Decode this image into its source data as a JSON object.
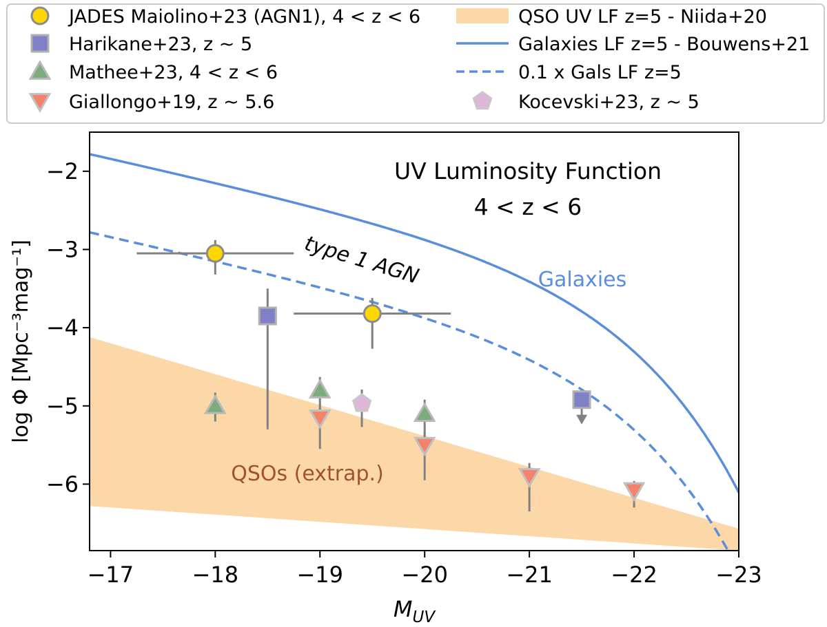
{
  "chart_data": {
    "type": "scatter",
    "title": "UV Luminosity Function",
    "subtitle": "4 < z < 6",
    "xlabel": "M",
    "xlabel_sub": "UV",
    "ylabel": "log Φ  [Mpc⁻³mag⁻¹]",
    "xlim": [
      -16.8,
      -23.0
    ],
    "ylim": [
      -6.85,
      -1.5
    ],
    "grid": false,
    "legend_placement": "top, outside (two columns)",
    "x_ticks": [
      -17,
      -18,
      -19,
      -20,
      -21,
      -22,
      -23
    ],
    "x_tick_labels": [
      "−17",
      "−18",
      "−19",
      "−20",
      "−21",
      "−22",
      "−23"
    ],
    "y_ticks": [
      -2,
      -3,
      -4,
      -5,
      -6
    ],
    "y_tick_labels": [
      "−2",
      "−3",
      "−4",
      "−5",
      "−6"
    ],
    "colors": {
      "jades": "#ffd700",
      "harikane": "#8080c8",
      "mathee": "#7cab7c",
      "giallongo": "#f5826a",
      "kocevski": "#ddb6d8",
      "qso_band": "#fcd8a8",
      "galaxies_line": "#5b8ddd",
      "qso_label": "#a0522d",
      "errorbar": "#808080"
    },
    "legend": [
      "JADES Maiolino+23 (AGN1), 4 < z < 6",
      "Harikane+23, z ~ 5",
      "Mathee+23, 4 < z < 6",
      "Giallongo+19, z ~ 5.6",
      "QSO UV LF z=5 - Niida+20",
      "Galaxies LF z=5 - Bouwens+21",
      "0.1 x Gals LF z=5",
      "Kocevski+23, z ~ 5"
    ],
    "annotations": {
      "agn": "type 1 AGN",
      "galaxies": "Galaxies",
      "qso": "QSOs (extrap.)"
    },
    "series": [
      {
        "name": "JADES Maiolino+23 (AGN1), 4 < z < 6",
        "marker": "circle",
        "points": [
          {
            "x": -18.0,
            "y": -3.05,
            "xerr": [
              0.75,
              0.75
            ],
            "yerr": [
              0.27,
              0.17
            ]
          },
          {
            "x": -19.5,
            "y": -3.82,
            "xerr": [
              0.75,
              0.75
            ],
            "yerr": [
              0.45,
              0.2
            ]
          }
        ]
      },
      {
        "name": "Harikane+23, z ~ 5",
        "marker": "square",
        "points": [
          {
            "x": -18.5,
            "y": -3.85,
            "yerr": [
              1.45,
              0.35
            ]
          },
          {
            "x": -21.5,
            "y": -4.92,
            "upper_limit": true
          }
        ]
      },
      {
        "name": "Mathee+23, 4 < z < 6",
        "marker": "triangle-up",
        "points": [
          {
            "x": -18.0,
            "y": -5.0,
            "yerr": [
              0.2,
              0.17
            ]
          },
          {
            "x": -19.0,
            "y": -4.8,
            "yerr": [
              0.4,
              0.17
            ]
          },
          {
            "x": -20.0,
            "y": -5.1,
            "yerr": [
              0.38,
              0.18
            ]
          }
        ]
      },
      {
        "name": "Giallongo+19, z ~ 5.6",
        "marker": "triangle-down",
        "points": [
          {
            "x": -19.0,
            "y": -5.15,
            "yerr": [
              0.4,
              0.18
            ]
          },
          {
            "x": -20.0,
            "y": -5.5,
            "yerr": [
              0.45,
              0.18
            ]
          },
          {
            "x": -21.0,
            "y": -5.9,
            "yerr": [
              0.45,
              0.17
            ]
          },
          {
            "x": -22.0,
            "y": -6.08,
            "yerr": [
              0.22,
              0.12
            ]
          }
        ]
      },
      {
        "name": "Kocevski+23, z ~ 5",
        "marker": "pentagon",
        "points": [
          {
            "x": -19.4,
            "y": -4.97,
            "yerr": [
              0.3,
              0.18
            ]
          }
        ]
      }
    ],
    "qso_band": {
      "name": "QSO UV LF z=5 - Niida+20",
      "x": [
        -16.8,
        -23.0
      ],
      "upper": [
        -4.12,
        -6.57
      ],
      "lower": [
        -6.28,
        -6.85
      ]
    },
    "galaxies_lf": {
      "name": "Galaxies LF z=5 - Bouwens+21",
      "phi_star_log": -3.01,
      "m_star": -21.1,
      "alpha": -1.74
    },
    "galaxies_lf_scaled": {
      "name": "0.1 x Gals LF z=5",
      "offset_dex": -1.0
    }
  }
}
